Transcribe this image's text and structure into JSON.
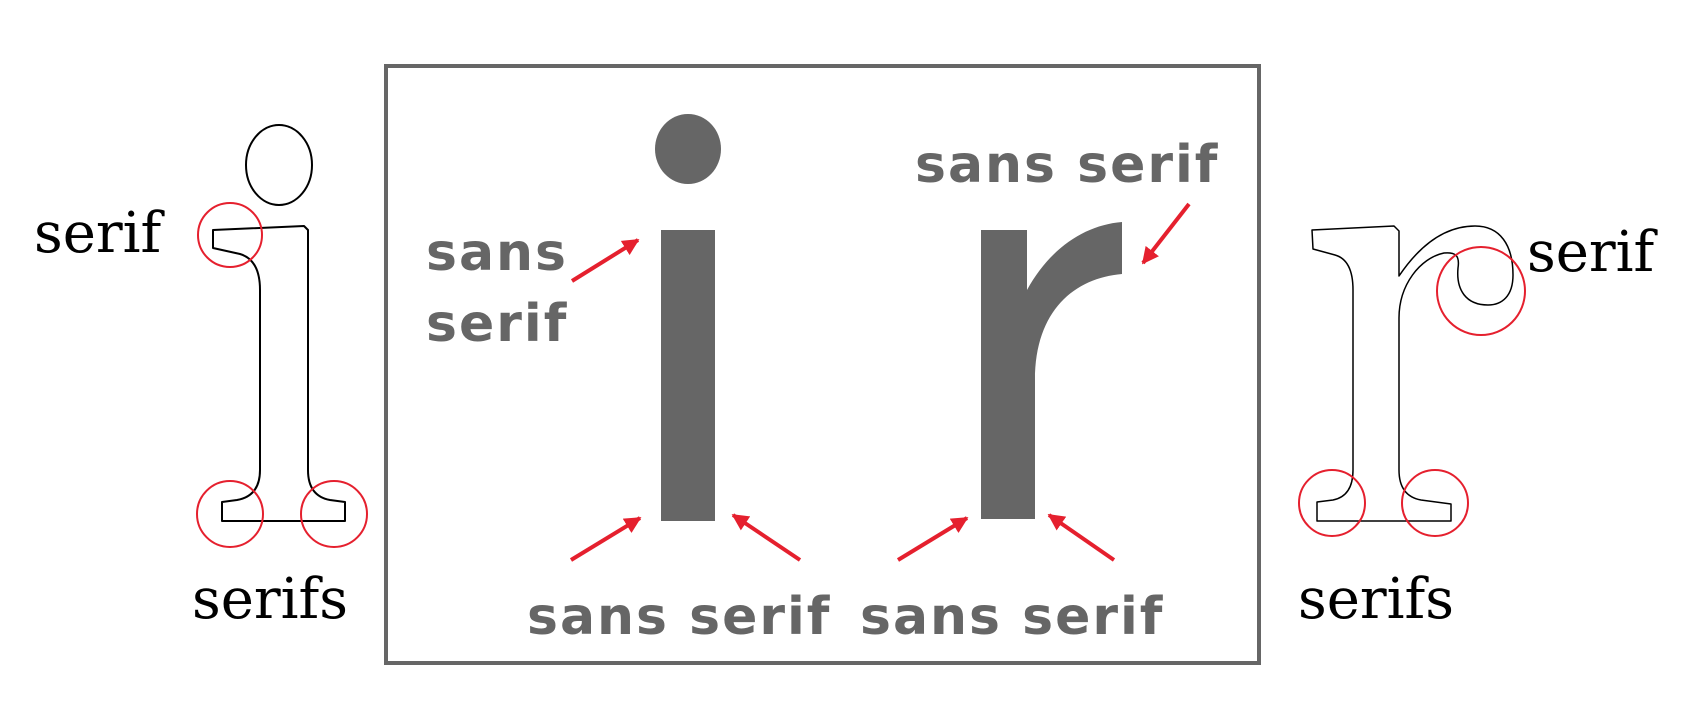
{
  "left_panel": {
    "serif_label": "serif",
    "serifs_label": "serifs"
  },
  "center_panel": {
    "i_top_label_line1": "sans",
    "i_top_label_line2": "serif",
    "r_top_label": "sans serif",
    "i_bottom_label": "sans serif",
    "r_bottom_label": "sans serif"
  },
  "right_panel": {
    "serif_label": "serif",
    "serifs_label": "serifs"
  },
  "colors": {
    "sans_glyph": "#666666",
    "sans_text": "#666666",
    "arrow": "#e5202e",
    "highlight_circle": "#e5202e",
    "frame": "#666666",
    "outline": "#000000"
  }
}
